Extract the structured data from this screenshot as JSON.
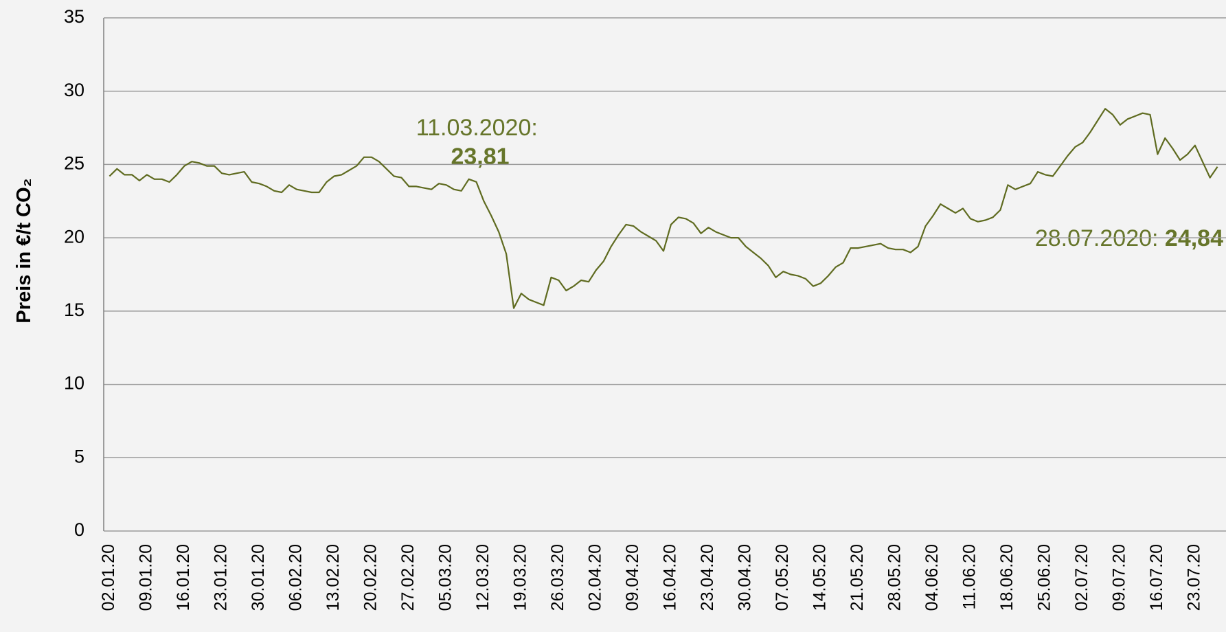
{
  "chart_data": {
    "type": "line",
    "ylabel": "Preis in €/t CO₂",
    "ylim": [
      0,
      35
    ],
    "yticks": [
      0,
      5,
      10,
      15,
      20,
      25,
      30,
      35
    ],
    "grid": true,
    "categories": [
      "02.01.20",
      null,
      null,
      null,
      null,
      "09.01.20",
      null,
      null,
      null,
      null,
      "16.01.20",
      null,
      null,
      null,
      null,
      "23.01.20",
      null,
      null,
      null,
      null,
      "30.01.20",
      null,
      null,
      null,
      null,
      "06.02.20",
      null,
      null,
      null,
      null,
      "13.02.20",
      null,
      null,
      null,
      null,
      "20.02.20",
      null,
      null,
      null,
      null,
      "27.02.20",
      null,
      null,
      null,
      null,
      "05.03.20",
      null,
      null,
      null,
      null,
      "12.03.20",
      null,
      null,
      null,
      null,
      "19.03.20",
      null,
      null,
      null,
      null,
      "26.03.20",
      null,
      null,
      null,
      null,
      "02.04.20",
      null,
      null,
      null,
      null,
      "09.04.20",
      null,
      null,
      null,
      null,
      "16.04.20",
      null,
      null,
      null,
      null,
      "23.04.20",
      null,
      null,
      null,
      null,
      "30.04.20",
      null,
      null,
      null,
      null,
      "07.05.20",
      null,
      null,
      null,
      null,
      "14.05.20",
      null,
      null,
      null,
      null,
      "21.05.20",
      null,
      null,
      null,
      null,
      "28.05.20",
      null,
      null,
      null,
      null,
      "04.06.20",
      null,
      null,
      null,
      null,
      "11.06.20",
      null,
      null,
      null,
      null,
      "18.06.20",
      null,
      null,
      null,
      null,
      "25.06.20",
      null,
      null,
      null,
      null,
      "02.07.20",
      null,
      null,
      null,
      null,
      "09.07.20",
      null,
      null,
      null,
      null,
      "16.07.20",
      null,
      null,
      null,
      null,
      "23.07.20",
      null,
      null,
      null
    ],
    "series": [
      {
        "color": "#5f6b20",
        "values": [
          24.2,
          24.7,
          24.3,
          24.3,
          23.9,
          24.3,
          24.0,
          24.0,
          23.8,
          24.3,
          24.9,
          25.2,
          25.1,
          24.9,
          24.9,
          24.4,
          24.3,
          24.4,
          24.5,
          23.8,
          23.7,
          23.5,
          23.2,
          23.1,
          23.6,
          23.3,
          23.2,
          23.1,
          23.1,
          23.8,
          24.2,
          24.3,
          24.6,
          24.9,
          25.5,
          25.5,
          25.2,
          24.7,
          24.2,
          24.1,
          23.5,
          23.5,
          23.4,
          23.3,
          23.7,
          23.6,
          23.3,
          23.2,
          24.0,
          23.81,
          22.5,
          21.5,
          20.4,
          18.9,
          15.2,
          16.2,
          15.8,
          15.6,
          15.4,
          17.3,
          17.1,
          16.4,
          16.7,
          17.1,
          17.0,
          17.8,
          18.4,
          19.4,
          20.2,
          20.9,
          20.8,
          20.4,
          20.1,
          19.8,
          19.1,
          20.9,
          21.4,
          21.3,
          21.0,
          20.3,
          20.7,
          20.4,
          20.2,
          20.0,
          20.0,
          19.4,
          19.0,
          18.6,
          18.1,
          17.3,
          17.7,
          17.5,
          17.4,
          17.2,
          16.7,
          16.9,
          17.4,
          18.0,
          18.3,
          19.3,
          19.3,
          19.4,
          19.5,
          19.6,
          19.3,
          19.2,
          19.2,
          19.0,
          19.4,
          20.8,
          21.5,
          22.3,
          22.0,
          21.7,
          22.0,
          21.3,
          21.1,
          21.2,
          21.4,
          21.9,
          23.6,
          23.3,
          23.5,
          23.7,
          24.5,
          24.3,
          24.2,
          24.9,
          25.6,
          26.2,
          26.5,
          27.2,
          28.0,
          28.8,
          28.4,
          27.7,
          28.1,
          28.3,
          28.5,
          28.4,
          25.7,
          26.8,
          26.1,
          25.3,
          25.7,
          26.3,
          25.2,
          24.1,
          24.84
        ]
      }
    ],
    "annotations": [
      {
        "text": "11.03.2020:",
        "value": 23.81,
        "value_label": "23,81"
      },
      {
        "text": "28.07.2020: ",
        "value": 24.84,
        "value_label": "24,84"
      }
    ]
  }
}
